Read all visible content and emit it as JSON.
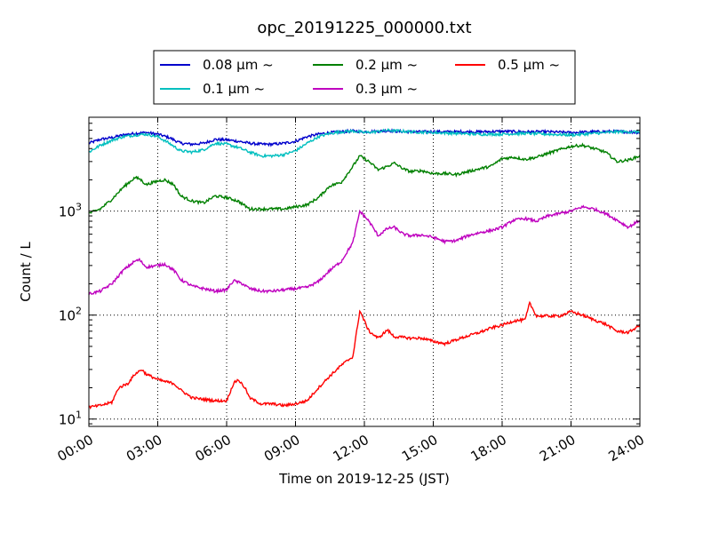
{
  "chart_data": {
    "type": "line",
    "title": "opc_20191225_000000.txt",
    "xlabel": "Time on 2019-12-25 (JST)",
    "ylabel": "Count / L",
    "yscale": "log",
    "xlim": [
      0,
      24
    ],
    "ylim": [
      8.5,
      8000
    ],
    "grid": true,
    "legend_position": "top-center",
    "x_ticks": [
      {
        "value": 0,
        "label": "00:00"
      },
      {
        "value": 3,
        "label": "03:00"
      },
      {
        "value": 6,
        "label": "06:00"
      },
      {
        "value": 9,
        "label": "09:00"
      },
      {
        "value": 12,
        "label": "12:00"
      },
      {
        "value": 15,
        "label": "15:00"
      },
      {
        "value": 18,
        "label": "18:00"
      },
      {
        "value": 21,
        "label": "21:00"
      },
      {
        "value": 24,
        "label": "24:00"
      }
    ],
    "y_ticks": [
      {
        "value": 10,
        "base": "10",
        "exp": "1"
      },
      {
        "value": 100,
        "base": "10",
        "exp": "2"
      },
      {
        "value": 1000,
        "base": "10",
        "exp": "3"
      }
    ],
    "series": [
      {
        "name": "0.08 μm ~",
        "color": "#0000cc",
        "x": [
          0,
          0.5,
          1,
          1.5,
          2,
          2.5,
          3,
          3.5,
          4,
          4.5,
          5,
          5.5,
          6,
          6.5,
          7,
          7.5,
          8,
          8.5,
          9,
          9.5,
          10,
          10.5,
          11,
          11.5,
          12,
          12.5,
          13,
          13.5,
          14,
          15,
          16,
          17,
          18,
          19,
          20,
          21,
          22,
          23,
          24
        ],
        "y": [
          4500,
          4900,
          5100,
          5400,
          5600,
          5700,
          5500,
          5100,
          4500,
          4400,
          4500,
          4900,
          4850,
          4700,
          4500,
          4400,
          4400,
          4500,
          4700,
          5200,
          5500,
          5700,
          5800,
          5900,
          5800,
          5850,
          5950,
          5850,
          5800,
          5800,
          5800,
          5800,
          5850,
          5800,
          5800,
          5700,
          5800,
          5850,
          5700
        ]
      },
      {
        "name": "0.1 μm ~",
        "color": "#00bfbf",
        "x": [
          0,
          0.5,
          1,
          1.5,
          2,
          2.5,
          3,
          3.5,
          4,
          4.5,
          5,
          5.5,
          6,
          6.5,
          7,
          7.5,
          8,
          8.5,
          9,
          9.5,
          10,
          10.5,
          11,
          11.5,
          12,
          12.5,
          13,
          13.5,
          14,
          15,
          16,
          17,
          18,
          19,
          20,
          21,
          22,
          23,
          24
        ],
        "y": [
          3700,
          4300,
          4800,
          5200,
          5400,
          5500,
          5200,
          4500,
          3800,
          3700,
          3900,
          4500,
          4400,
          4100,
          3700,
          3400,
          3400,
          3500,
          3800,
          4500,
          5200,
          5600,
          5800,
          5900,
          5700,
          5800,
          6000,
          5900,
          5800,
          5700,
          5600,
          5500,
          5500,
          5600,
          5500,
          5400,
          5600,
          5800,
          5800
        ]
      },
      {
        "name": "0.2 μm ~",
        "color": "#008000",
        "x": [
          0,
          0.5,
          1,
          1.5,
          2,
          2.2,
          2.5,
          3,
          3.3,
          3.7,
          4,
          4.5,
          5,
          5.5,
          6,
          6.5,
          7,
          7.5,
          8,
          8.5,
          9,
          9.5,
          10,
          10.5,
          11,
          11.5,
          11.8,
          12.2,
          12.6,
          13,
          13.3,
          13.7,
          14,
          14.5,
          15,
          15.5,
          16,
          16.5,
          17,
          17.5,
          18,
          18.5,
          19,
          19.5,
          20,
          20.5,
          21,
          21.5,
          22,
          22.5,
          23,
          23.5,
          24
        ],
        "y": [
          950,
          1050,
          1300,
          1700,
          2100,
          2050,
          1800,
          1950,
          2000,
          1800,
          1400,
          1250,
          1200,
          1400,
          1350,
          1250,
          1050,
          1050,
          1050,
          1050,
          1100,
          1150,
          1350,
          1750,
          1900,
          2700,
          3400,
          3000,
          2500,
          2700,
          2900,
          2550,
          2400,
          2450,
          2300,
          2300,
          2250,
          2400,
          2550,
          2700,
          3200,
          3300,
          3150,
          3300,
          3600,
          3900,
          4200,
          4300,
          4000,
          3700,
          3000,
          3100,
          3400
        ]
      },
      {
        "name": "0.3 μm ~",
        "color": "#bf00bf",
        "x": [
          0,
          0.5,
          1,
          1.5,
          2,
          2.2,
          2.5,
          3,
          3.3,
          3.7,
          4,
          4.5,
          5,
          5.5,
          6,
          6.3,
          6.7,
          7,
          7.5,
          8,
          8.5,
          9,
          9.5,
          10,
          10.5,
          11,
          11.5,
          11.8,
          12.2,
          12.6,
          13,
          13.3,
          13.7,
          14,
          14.5,
          15,
          15.5,
          16,
          16.5,
          17,
          17.5,
          18,
          18.5,
          19,
          19.5,
          20,
          20.5,
          21,
          21.5,
          22,
          22.5,
          23,
          23.5,
          24
        ],
        "y": [
          160,
          170,
          200,
          270,
          330,
          340,
          290,
          300,
          310,
          270,
          220,
          190,
          180,
          170,
          175,
          215,
          200,
          180,
          170,
          170,
          175,
          180,
          185,
          210,
          270,
          330,
          500,
          1000,
          800,
          580,
          680,
          700,
          600,
          580,
          590,
          560,
          510,
          520,
          580,
          620,
          650,
          700,
          820,
          850,
          800,
          900,
          950,
          1000,
          1100,
          1050,
          950,
          820,
          700,
          820
        ]
      },
      {
        "name": "0.5 μm ~",
        "color": "#ff0000",
        "x": [
          0,
          0.5,
          1,
          1.3,
          1.7,
          2,
          2.3,
          2.5,
          3,
          3.3,
          3.7,
          4,
          4.5,
          5,
          5.5,
          6,
          6.3,
          6.5,
          6.8,
          7,
          7.5,
          8,
          8.5,
          9,
          9.5,
          10,
          10.5,
          11,
          11.5,
          11.8,
          12.2,
          12.6,
          13,
          13.3,
          13.7,
          14,
          14.5,
          15,
          15.5,
          16,
          16.5,
          17,
          17.5,
          18,
          18.5,
          19,
          19.2,
          19.5,
          20,
          20.5,
          21,
          21.5,
          22,
          22.5,
          23,
          23.5,
          24
        ],
        "y": [
          13,
          13.5,
          14.5,
          20,
          22,
          27,
          30,
          27,
          24,
          23,
          22,
          19,
          16,
          15.5,
          15,
          15,
          22,
          24,
          20,
          16,
          14,
          14,
          13.5,
          14,
          15,
          20,
          26,
          33,
          40,
          110,
          70,
          60,
          72,
          62,
          61,
          60,
          60,
          56,
          53,
          58,
          63,
          68,
          75,
          80,
          88,
          90,
          130,
          98,
          98,
          98,
          108,
          100,
          90,
          82,
          70,
          68,
          80
        ]
      }
    ]
  }
}
